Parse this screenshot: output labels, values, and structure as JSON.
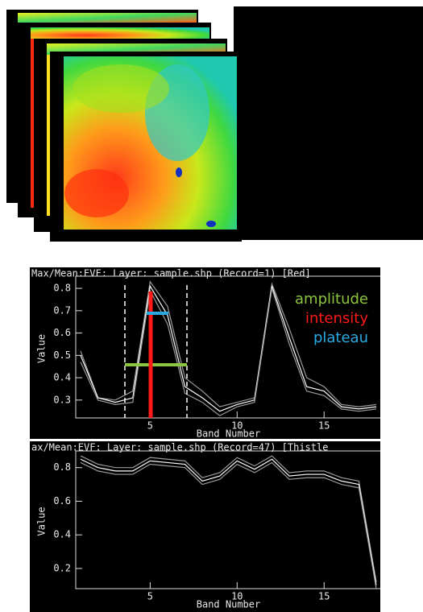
{
  "chart_data": [
    {
      "type": "line",
      "title": "Max/Mean:EVF: Layer: sample.shp (Record=1) [Red]",
      "x_label": "Band Number",
      "y_label": "Value",
      "x": [
        1,
        2,
        3,
        4,
        5,
        6,
        7,
        8,
        9,
        10,
        11,
        12,
        13,
        14,
        15,
        16,
        17,
        18
      ],
      "series": [
        {
          "color": "#9a9a9a",
          "values": [
            0.52,
            0.31,
            0.3,
            0.34,
            0.83,
            0.72,
            0.4,
            0.34,
            0.27,
            0.29,
            0.31,
            0.82,
            0.62,
            0.4,
            0.36,
            0.28,
            0.27,
            0.28
          ]
        },
        {
          "color": "#ffffff",
          "values": [
            0.5,
            0.31,
            0.29,
            0.31,
            0.81,
            0.68,
            0.36,
            0.31,
            0.25,
            0.28,
            0.3,
            0.81,
            0.58,
            0.36,
            0.34,
            0.27,
            0.26,
            0.27
          ]
        },
        {
          "color": "#9a9a9a",
          "values": [
            0.47,
            0.3,
            0.28,
            0.29,
            0.79,
            0.64,
            0.33,
            0.29,
            0.23,
            0.27,
            0.29,
            0.8,
            0.55,
            0.34,
            0.32,
            0.26,
            0.25,
            0.26
          ]
        }
      ],
      "xlim": [
        1,
        18
      ],
      "xticks": [
        5,
        10,
        15
      ],
      "ylim": [
        0.22,
        0.84
      ],
      "yticks": [
        0.3,
        0.4,
        0.5,
        0.6,
        0.7,
        0.8
      ],
      "annotations": [
        {
          "text": "amplitude",
          "color": "#8dc63f"
        },
        {
          "text": "intensity",
          "color": "#ff1a1a"
        },
        {
          "text": "plateau",
          "color": "#29abe2"
        }
      ]
    },
    {
      "type": "line",
      "title": "ax/Mean:EVF: Layer: sample.shp (Record=47) [Thistle",
      "x_label": "Band Number",
      "y_label": "Value",
      "x": [
        1,
        2,
        3,
        4,
        5,
        6,
        7,
        8,
        9,
        10,
        11,
        12,
        13,
        14,
        15,
        16,
        17,
        18
      ],
      "series": [
        {
          "color": "#9a9a9a",
          "values": [
            0.87,
            0.82,
            0.8,
            0.8,
            0.86,
            0.85,
            0.84,
            0.74,
            0.77,
            0.86,
            0.81,
            0.87,
            0.77,
            0.78,
            0.78,
            0.74,
            0.72,
            0.12
          ]
        },
        {
          "color": "#ffffff",
          "values": [
            0.85,
            0.8,
            0.78,
            0.78,
            0.84,
            0.83,
            0.82,
            0.72,
            0.75,
            0.84,
            0.79,
            0.85,
            0.75,
            0.76,
            0.76,
            0.72,
            0.7,
            0.1
          ]
        },
        {
          "color": "#9a9a9a",
          "values": [
            0.83,
            0.78,
            0.76,
            0.76,
            0.82,
            0.81,
            0.8,
            0.7,
            0.73,
            0.82,
            0.77,
            0.83,
            0.73,
            0.74,
            0.74,
            0.7,
            0.68,
            0.08
          ]
        }
      ],
      "xlim": [
        1,
        18
      ],
      "xticks": [
        5,
        10,
        15
      ],
      "ylim": [
        0.08,
        0.88
      ],
      "yticks": [
        0.2,
        0.4,
        0.6,
        0.8
      ]
    }
  ]
}
